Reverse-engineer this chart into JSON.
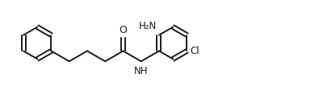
{
  "background_color": "#ffffff",
  "line_color": "#1a1a1a",
  "line_width": 1.4,
  "font_size": 8.5,
  "figsize": [
    3.95,
    1.07
  ],
  "dpi": 100,
  "xlim": [
    0,
    9.5
  ],
  "ylim": [
    0,
    2.3
  ]
}
